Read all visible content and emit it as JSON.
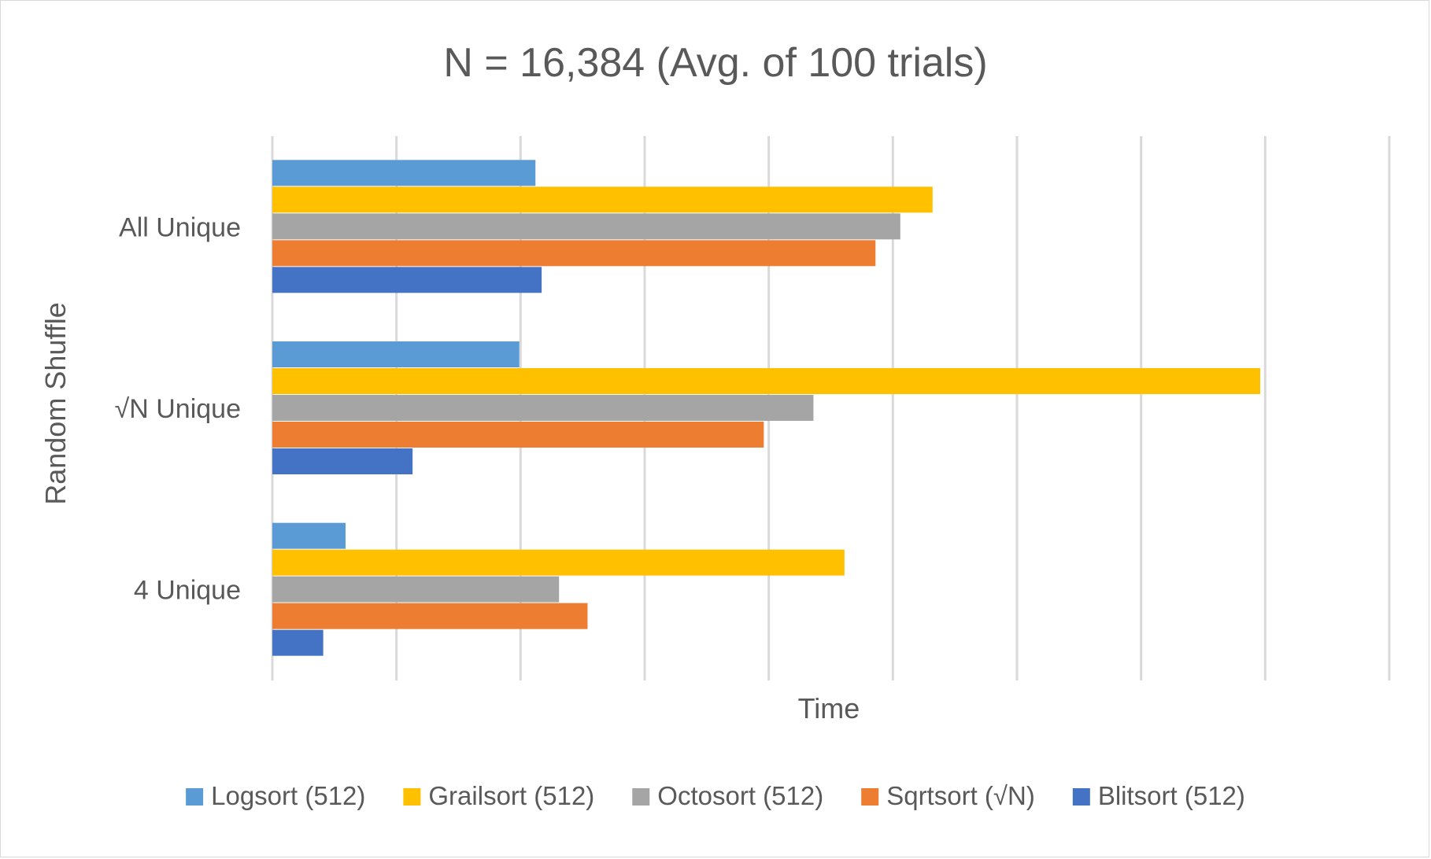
{
  "chart_data": {
    "type": "bar",
    "orientation": "horizontal",
    "title": "N = 16,384  (Avg. of 100 trials)",
    "xlabel": "Time",
    "ylabel": "Random Shuffle",
    "categories": [
      "All Unique",
      "√N Unique",
      "4 Unique"
    ],
    "series": [
      {
        "name": "Logsort (512)",
        "color": "#5b9bd5",
        "values": [
          2.12,
          1.99,
          0.59
        ]
      },
      {
        "name": "Grailsort (512)",
        "color": "#ffc000",
        "values": [
          5.32,
          7.96,
          4.61
        ]
      },
      {
        "name": "Octosort (512)",
        "color": "#a5a5a5",
        "values": [
          5.06,
          4.36,
          2.31
        ]
      },
      {
        "name": "Sqrtsort (√N)",
        "color": "#ed7d31",
        "values": [
          4.86,
          3.96,
          2.54
        ]
      },
      {
        "name": "Blitsort (512)",
        "color": "#4472c4",
        "values": [
          2.17,
          1.13,
          0.41
        ]
      }
    ],
    "xlim": [
      0,
      9
    ],
    "grid": true,
    "tick_labels_shown": false,
    "legend_position": "bottom"
  }
}
